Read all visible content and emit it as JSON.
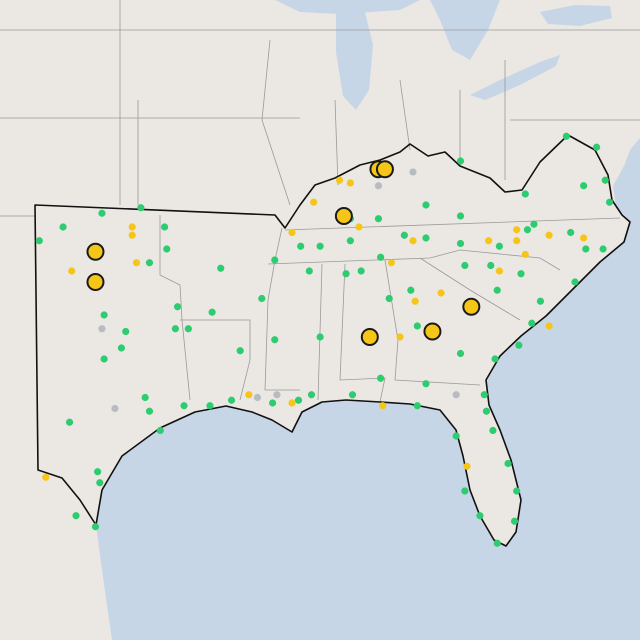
{
  "map": {
    "marker_groups": [
      {
        "color": "#2ecc71",
        "style": "small",
        "points": [
          [
            -101.7,
            36.2
          ],
          [
            -99.9,
            36.7
          ],
          [
            -98.1,
            36.9
          ],
          [
            -97.0,
            36.2
          ],
          [
            -102.8,
            35.7
          ],
          [
            -96.9,
            35.4
          ],
          [
            -97.7,
            34.9
          ],
          [
            -94.4,
            34.7
          ],
          [
            -99.8,
            33.0
          ],
          [
            -98.8,
            32.4
          ],
          [
            -99.8,
            31.4
          ],
          [
            -99.0,
            31.8
          ],
          [
            -96.4,
            33.3
          ],
          [
            -96.5,
            32.5
          ],
          [
            -94.8,
            33.1
          ],
          [
            -95.9,
            32.5
          ],
          [
            -91.9,
            35.0
          ],
          [
            -90.7,
            35.5
          ],
          [
            -89.8,
            35.5
          ],
          [
            -90.3,
            34.6
          ],
          [
            -92.5,
            33.6
          ],
          [
            -91.9,
            32.1
          ],
          [
            -93.5,
            31.7
          ],
          [
            -89.8,
            32.2
          ],
          [
            -88.6,
            34.5
          ],
          [
            -87.9,
            34.6
          ],
          [
            -88.4,
            35.7
          ],
          [
            -87.0,
            35.1
          ],
          [
            -85.9,
            35.9
          ],
          [
            -84.9,
            35.8
          ],
          [
            -83.3,
            35.6
          ],
          [
            -81.5,
            35.5
          ],
          [
            -80.2,
            36.1
          ],
          [
            -78.2,
            36.0
          ],
          [
            -77.5,
            35.4
          ],
          [
            -76.7,
            35.4
          ],
          [
            -83.1,
            34.8
          ],
          [
            -81.9,
            34.8
          ],
          [
            -80.5,
            34.5
          ],
          [
            -81.6,
            33.9
          ],
          [
            -79.6,
            33.5
          ],
          [
            -78.0,
            34.2
          ],
          [
            -85.6,
            33.9
          ],
          [
            -86.6,
            33.6
          ],
          [
            -85.3,
            32.6
          ],
          [
            -80.0,
            32.7
          ],
          [
            -80.6,
            31.9
          ],
          [
            -81.7,
            31.4
          ],
          [
            -83.3,
            31.6
          ],
          [
            -85.3,
            29.7
          ],
          [
            -84.9,
            30.5
          ],
          [
            -82.2,
            30.1
          ],
          [
            -82.1,
            29.5
          ],
          [
            -83.5,
            28.6
          ],
          [
            -81.8,
            28.8
          ],
          [
            -81.1,
            27.6
          ],
          [
            -83.1,
            26.6
          ],
          [
            -80.7,
            26.6
          ],
          [
            -82.4,
            25.7
          ],
          [
            -80.8,
            25.5
          ],
          [
            -81.6,
            24.7
          ],
          [
            -87.0,
            30.7
          ],
          [
            -88.3,
            30.1
          ],
          [
            -90.2,
            30.1
          ],
          [
            -90.8,
            29.9
          ],
          [
            -92.0,
            29.8
          ],
          [
            -93.9,
            29.9
          ],
          [
            -94.9,
            29.7
          ],
          [
            -96.1,
            29.7
          ],
          [
            -97.7,
            29.5
          ],
          [
            -97.9,
            30.0
          ],
          [
            -97.2,
            28.8
          ],
          [
            -101.4,
            29.1
          ],
          [
            -100.1,
            27.3
          ],
          [
            -100.0,
            26.9
          ],
          [
            -101.1,
            25.7
          ],
          [
            -100.2,
            25.3
          ],
          [
            -83.3,
            38.6
          ],
          [
            -80.3,
            37.4
          ],
          [
            -79.9,
            36.3
          ],
          [
            -78.4,
            39.5
          ],
          [
            -77.0,
            39.1
          ],
          [
            -76.6,
            37.9
          ],
          [
            -76.4,
            37.1
          ],
          [
            -77.6,
            37.7
          ],
          [
            -84.9,
            37.0
          ],
          [
            -83.3,
            36.6
          ],
          [
            -87.1,
            36.5
          ],
          [
            -88.4,
            36.5
          ]
        ]
      },
      {
        "color": "#f5c518",
        "style": "small",
        "points": [
          [
            -98.5,
            36.2
          ],
          [
            -98.5,
            35.9
          ],
          [
            -101.3,
            34.6
          ],
          [
            -98.3,
            34.9
          ],
          [
            -91.1,
            36.0
          ],
          [
            -90.1,
            37.1
          ],
          [
            -88.9,
            37.9
          ],
          [
            -88.4,
            37.8
          ],
          [
            -88.0,
            36.2
          ],
          [
            -86.5,
            34.9
          ],
          [
            -85.4,
            33.5
          ],
          [
            -84.2,
            33.8
          ],
          [
            -85.5,
            35.7
          ],
          [
            -82.0,
            35.7
          ],
          [
            -80.7,
            36.1
          ],
          [
            -80.7,
            35.7
          ],
          [
            -79.2,
            35.9
          ],
          [
            -77.6,
            35.8
          ],
          [
            -80.3,
            35.2
          ],
          [
            -81.5,
            34.6
          ],
          [
            -79.2,
            32.6
          ],
          [
            -86.1,
            32.2
          ],
          [
            -93.1,
            30.1
          ],
          [
            -86.9,
            29.7
          ],
          [
            -83.0,
            27.5
          ],
          [
            -102.5,
            27.1
          ],
          [
            -91.1,
            29.8
          ]
        ]
      },
      {
        "color": "#b8bcc0",
        "style": "small",
        "points": [
          [
            -85.5,
            38.2
          ],
          [
            -87.1,
            37.7
          ],
          [
            -99.3,
            29.6
          ],
          [
            -91.8,
            30.1
          ],
          [
            -92.7,
            30.0
          ],
          [
            -83.5,
            30.1
          ],
          [
            -99.9,
            32.5
          ]
        ]
      },
      {
        "color": "#f5c518",
        "style": "large",
        "points": [
          [
            -100.2,
            35.3
          ],
          [
            -100.2,
            34.2
          ],
          [
            -88.7,
            36.6
          ],
          [
            -87.1,
            38.3
          ],
          [
            -86.8,
            38.3
          ],
          [
            -87.5,
            32.2
          ],
          [
            -84.6,
            32.4
          ],
          [
            -82.8,
            33.3
          ]
        ]
      }
    ]
  }
}
